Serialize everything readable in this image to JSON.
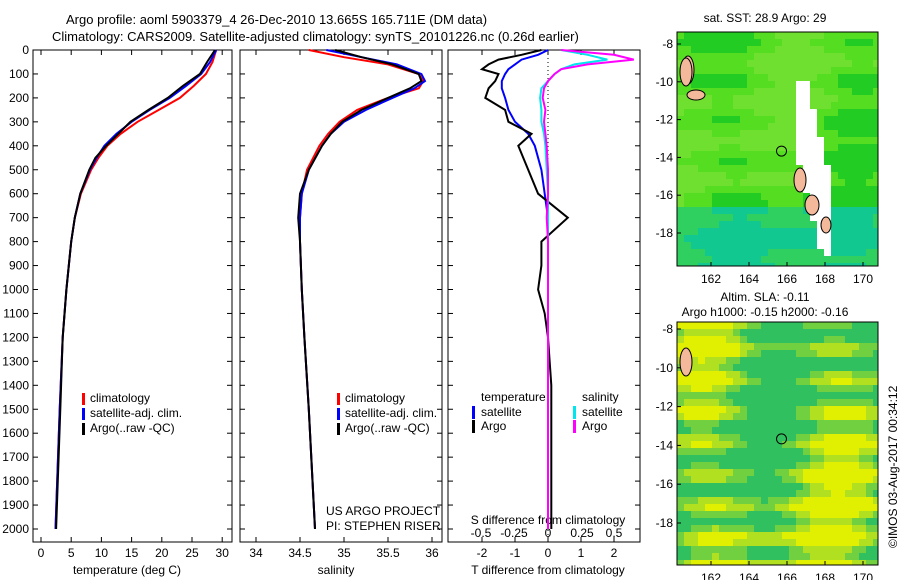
{
  "title_line1": "Argo profile: aoml 5903379_4 26-Dec-2010 13.665S 165.711E (DM data)",
  "title_line2": "Climatology: CARS2009. Satellite-adjusted climatology: synTS_20101226.nc (0.26d earlier)",
  "colors": {
    "climatology": "#ff0000",
    "satellite": "#0000ff",
    "argo": "#000000",
    "sal_satellite": "#00e5ee",
    "sal_argo": "#ff00ff"
  },
  "chart_data": [
    {
      "type": "line",
      "name": "temperature",
      "xlabel": "temperature (deg C)",
      "ylabel": "depth",
      "xticks": [
        "0",
        "5",
        "10",
        "15",
        "20",
        "25",
        "30"
      ],
      "yticks": [
        "0",
        "100",
        "200",
        "300",
        "400",
        "500",
        "600",
        "700",
        "800",
        "900",
        "1000",
        "1100",
        "1200",
        "1300",
        "1400",
        "1500",
        "1600",
        "1700",
        "1800",
        "1900",
        "2000"
      ],
      "ylim": [
        2000,
        0
      ],
      "depth": [
        0,
        50,
        100,
        150,
        200,
        250,
        300,
        350,
        400,
        450,
        500,
        600,
        700,
        800,
        1000,
        1200,
        1500,
        2000
      ],
      "series": [
        {
          "name": "climatology",
          "values": [
            29.0,
            28.4,
            27.3,
            25.3,
            23.0,
            19.5,
            16.0,
            13.2,
            11.0,
            9.5,
            8.3,
            6.6,
            5.6,
            5.0,
            4.2,
            3.6,
            3.1,
            2.4
          ]
        },
        {
          "name": "satellite-adj. clim.",
          "values": [
            29.0,
            28.0,
            26.5,
            24.0,
            21.3,
            18.0,
            15.0,
            12.5,
            10.5,
            9.2,
            8.1,
            6.5,
            5.6,
            5.0,
            4.2,
            3.6,
            3.1,
            2.4
          ]
        },
        {
          "name": "Argo(..raw -QC)",
          "values": [
            28.8,
            27.5,
            26.3,
            23.5,
            21.0,
            17.8,
            14.8,
            12.8,
            10.8,
            9.0,
            8.0,
            6.5,
            5.6,
            5.0,
            4.2,
            3.6,
            3.2,
            2.5
          ]
        }
      ],
      "legend": [
        "climatology",
        "satellite-adj. clim.",
        "Argo(..raw -QC)"
      ]
    },
    {
      "type": "line",
      "name": "salinity",
      "xlabel": "salinity",
      "xticks": [
        "34",
        "34.5",
        "35",
        "35.5",
        "36"
      ],
      "depth": [
        0,
        30,
        60,
        100,
        130,
        160,
        200,
        250,
        300,
        350,
        400,
        500,
        600,
        700,
        800,
        1000,
        1200,
        1500,
        2000
      ],
      "series": [
        {
          "name": "climatology",
          "values": [
            34.6,
            35.0,
            35.5,
            35.85,
            35.9,
            35.85,
            35.5,
            35.15,
            34.95,
            34.82,
            34.72,
            34.58,
            34.52,
            34.5,
            34.5,
            34.52,
            34.55,
            34.6,
            34.67
          ]
        },
        {
          "name": "satellite-adj. clim.",
          "values": [
            34.8,
            35.2,
            35.6,
            35.88,
            35.92,
            35.8,
            35.55,
            35.25,
            35.0,
            34.85,
            34.75,
            34.6,
            34.52,
            34.5,
            34.5,
            34.52,
            34.55,
            34.6,
            34.67
          ]
        },
        {
          "name": "Argo(..raw -QC)",
          "values": [
            34.9,
            35.2,
            35.55,
            35.85,
            35.88,
            35.75,
            35.5,
            35.2,
            34.98,
            34.85,
            34.75,
            34.6,
            34.5,
            34.48,
            34.5,
            34.52,
            34.55,
            34.6,
            34.67
          ]
        }
      ],
      "legend": [
        "climatology",
        "satellite-adj. clim.",
        "Argo(..raw -QC)"
      ],
      "annotation": [
        "US ARGO PROJECT",
        "PI: STEPHEN RISER"
      ]
    },
    {
      "type": "line",
      "name": "differences",
      "xlabel": "T difference from climatology",
      "x2label": "S difference from climatology",
      "xticks": [
        "-2",
        "-1",
        "0",
        "1",
        "2"
      ],
      "x2ticks": [
        "-0.5",
        "-0.25",
        "0",
        "0.25",
        "0.5"
      ],
      "depth": [
        0,
        20,
        40,
        60,
        80,
        100,
        130,
        160,
        200,
        250,
        300,
        350,
        400,
        500,
        600,
        700,
        800,
        900,
        1000,
        1100,
        1200,
        1400,
        1600,
        1800,
        2000
      ],
      "series": [
        {
          "name": "temperature satellite",
          "axis": "T",
          "values": [
            0,
            -0.3,
            -0.8,
            -1.0,
            -1.2,
            -1.3,
            -1.4,
            -1.4,
            -1.3,
            -1.2,
            -1.0,
            -0.6,
            -0.4,
            -0.2,
            -0.1,
            0,
            0,
            0,
            0,
            0,
            0,
            0,
            0,
            0,
            0
          ]
        },
        {
          "name": "temperature Argo",
          "axis": "T",
          "values": [
            -0.2,
            -0.8,
            -1.5,
            -1.8,
            -2.0,
            -1.5,
            -1.6,
            -1.8,
            -1.9,
            -1.3,
            -1.2,
            -0.5,
            -0.9,
            -0.6,
            -0.3,
            0.6,
            -0.2,
            -0.2,
            -0.3,
            -0.1,
            0.0,
            0.1,
            0.1,
            0.1,
            0.1
          ]
        },
        {
          "name": "salinity satellite",
          "axis": "S",
          "values": [
            0.1,
            0.3,
            0.45,
            0.2,
            0.1,
            0.05,
            0.0,
            -0.05,
            -0.06,
            -0.05,
            -0.05,
            -0.03,
            -0.02,
            -0.01,
            0,
            0,
            0,
            0,
            0,
            0,
            0,
            0,
            0,
            0,
            0
          ]
        },
        {
          "name": "salinity Argo",
          "axis": "S",
          "values": [
            0.1,
            0.5,
            0.65,
            0.3,
            0.1,
            0.05,
            0.0,
            -0.03,
            -0.04,
            -0.02,
            -0.03,
            -0.02,
            -0.01,
            0,
            0,
            -0.01,
            0,
            0,
            0,
            0,
            0,
            0,
            0,
            0,
            0
          ]
        }
      ],
      "legend": {
        "temperature": "temperature",
        "salinity": "salinity",
        "satellite": "satellite",
        "argo": "Argo"
      }
    },
    {
      "type": "heatmap",
      "name": "sst-map",
      "title": "sat. SST: 28.9 Argo: 29",
      "xticks": [
        "162",
        "164",
        "166",
        "168",
        "170"
      ],
      "yticks": [
        "-8",
        "-10",
        "-12",
        "-14",
        "-16",
        "-18"
      ]
    },
    {
      "type": "heatmap",
      "name": "sla-map",
      "title1": "Altim. SLA: -0.11",
      "title2": "Argo h1000: -0.15 h2000: -0.16",
      "xticks": [
        "162",
        "164",
        "166",
        "168",
        "170"
      ],
      "yticks": [
        "-8",
        "-10",
        "-12",
        "-14",
        "-16",
        "-18"
      ]
    }
  ],
  "credit": "©IMOS 03-Aug-2017 00:34:12"
}
